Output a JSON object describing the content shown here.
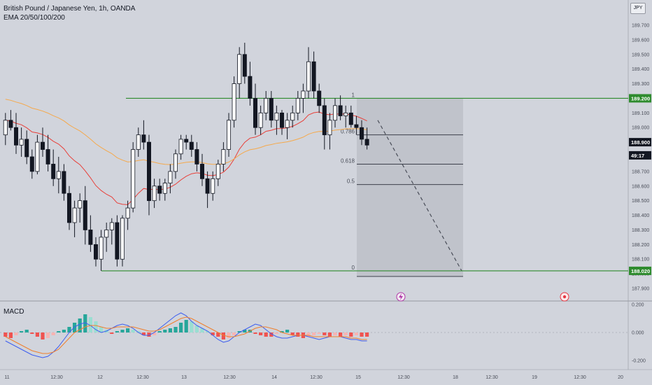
{
  "header": {
    "symbol": "British Pound / Japanese Yen, 1h, OANDA",
    "indicator": "EMA 20/50/100/200",
    "currency_button": "JPY"
  },
  "macd_panel": {
    "label": "MACD",
    "ticks": [
      "0.200",
      "0.000",
      "-0.200"
    ]
  },
  "price_axis": {
    "ticks": [
      "189.700",
      "189.600",
      "189.500",
      "189.400",
      "189.300",
      "189.200",
      "189.100",
      "189.000",
      "188.900",
      "188.800",
      "188.700",
      "188.600",
      "188.500",
      "188.400",
      "188.300",
      "188.200",
      "188.100",
      "188.000",
      "187.900"
    ]
  },
  "price_tags": {
    "resistance": "189.200",
    "support": "188.020",
    "countdown": "49:17",
    "last_price": "188.900"
  },
  "time_axis": [
    "11",
    "12:30",
    "12",
    "12:30",
    "13",
    "12:30",
    "14",
    "12:30",
    "15",
    "12:30",
    "18",
    "12:30",
    "19",
    "12:30",
    "20"
  ],
  "fib_labels": [
    "1",
    "0.786",
    "0.618",
    "0.5",
    "0"
  ],
  "colors": {
    "bg": "#d1d4dc",
    "up": "#ffffff",
    "down": "#131722",
    "ema_fast": "#e8403a",
    "ema_slow": "#f5a94c",
    "level": "#2e8b2e",
    "macd_line": "#3d5ef0",
    "signal_line": "#ef7f2d",
    "hist_up": "#26a69a",
    "hist_up_light": "#9bded2",
    "hist_down": "#ef5350",
    "hist_down_light": "#f7b4b2"
  },
  "icons": {
    "event_1": "lightning-icon",
    "event_2": "target-icon"
  },
  "chart_data": [
    {
      "type": "candlestick",
      "title": "British Pound / Japanese Yen, 1h, OANDA",
      "ylim": [
        187.88,
        189.76
      ],
      "levels": {
        "resistance": 189.2,
        "support": 188.02
      },
      "fibonacci": {
        "levels": [
          1,
          0.786,
          0.618,
          0.5,
          0
        ],
        "prices": [
          189.2,
          188.95,
          188.75,
          188.61,
          188.02
        ]
      },
      "projection": {
        "from": 189.05,
        "to": 188.02
      },
      "last_price": 188.9,
      "ohlc": [
        [
          188.95,
          189.1,
          188.88,
          189.05
        ],
        [
          189.05,
          189.12,
          188.98,
          189.0
        ],
        [
          189.0,
          189.1,
          188.82,
          188.88
        ],
        [
          188.88,
          189.0,
          188.8,
          188.92
        ],
        [
          188.92,
          188.98,
          188.75,
          188.8
        ],
        [
          188.8,
          188.85,
          188.65,
          188.7
        ],
        [
          188.7,
          188.95,
          188.68,
          188.9
        ],
        [
          188.9,
          189.0,
          188.8,
          188.85
        ],
        [
          188.85,
          188.95,
          188.7,
          188.75
        ],
        [
          188.75,
          188.85,
          188.6,
          188.65
        ],
        [
          188.65,
          188.8,
          188.55,
          188.7
        ],
        [
          188.7,
          188.75,
          188.5,
          188.55
        ],
        [
          188.55,
          188.6,
          188.3,
          188.35
        ],
        [
          188.35,
          188.5,
          188.25,
          188.45
        ],
        [
          188.45,
          188.55,
          188.35,
          188.5
        ],
        [
          188.5,
          188.6,
          188.2,
          188.3
        ],
        [
          188.3,
          188.4,
          188.15,
          188.2
        ],
        [
          188.2,
          188.25,
          188.05,
          188.1
        ],
        [
          188.1,
          188.3,
          188.02,
          188.25
        ],
        [
          188.25,
          188.35,
          188.15,
          188.3
        ],
        [
          188.3,
          188.38,
          188.2,
          188.35
        ],
        [
          188.35,
          188.4,
          188.05,
          188.1
        ],
        [
          188.1,
          188.4,
          188.05,
          188.38
        ],
        [
          188.38,
          188.5,
          188.3,
          188.45
        ],
        [
          188.45,
          188.9,
          188.42,
          188.85
        ],
        [
          188.85,
          189.0,
          188.8,
          188.95
        ],
        [
          188.95,
          189.05,
          188.85,
          188.9
        ],
        [
          188.9,
          188.95,
          188.4,
          188.5
        ],
        [
          188.5,
          188.65,
          188.45,
          188.6
        ],
        [
          188.6,
          188.65,
          188.5,
          188.55
        ],
        [
          188.55,
          188.65,
          188.5,
          188.62
        ],
        [
          188.62,
          188.75,
          188.55,
          188.7
        ],
        [
          188.7,
          188.85,
          188.65,
          188.82
        ],
        [
          188.82,
          188.95,
          188.78,
          188.92
        ],
        [
          188.92,
          188.95,
          188.85,
          188.9
        ],
        [
          188.9,
          188.95,
          188.8,
          188.85
        ],
        [
          188.85,
          188.9,
          188.7,
          188.75
        ],
        [
          188.75,
          188.82,
          188.6,
          188.65
        ],
        [
          188.65,
          188.7,
          188.45,
          188.55
        ],
        [
          188.55,
          188.7,
          188.5,
          188.65
        ],
        [
          188.65,
          188.78,
          188.6,
          188.75
        ],
        [
          188.75,
          188.9,
          188.7,
          188.85
        ],
        [
          188.85,
          189.1,
          188.8,
          189.05
        ],
        [
          189.05,
          189.35,
          189.0,
          189.3
        ],
        [
          189.3,
          189.55,
          189.2,
          189.5
        ],
        [
          189.5,
          189.58,
          189.3,
          189.35
        ],
        [
          189.35,
          189.45,
          189.15,
          189.2
        ],
        [
          189.2,
          189.3,
          188.95,
          189.0
        ],
        [
          189.0,
          189.15,
          188.95,
          189.1
        ],
        [
          189.1,
          189.25,
          189.05,
          189.2
        ],
        [
          189.2,
          189.25,
          189.0,
          189.05
        ],
        [
          189.05,
          189.15,
          188.95,
          189.1
        ],
        [
          189.1,
          189.12,
          188.95,
          189.0
        ],
        [
          189.0,
          189.1,
          188.92,
          189.05
        ],
        [
          189.05,
          189.15,
          189.0,
          189.1
        ],
        [
          189.1,
          189.25,
          189.05,
          189.2
        ],
        [
          189.2,
          189.3,
          189.1,
          189.25
        ],
        [
          189.25,
          189.55,
          189.2,
          189.45
        ],
        [
          189.45,
          189.52,
          189.2,
          189.25
        ],
        [
          189.25,
          189.3,
          189.1,
          189.15
        ],
        [
          189.15,
          189.2,
          188.85,
          188.95
        ],
        [
          188.95,
          189.1,
          188.85,
          189.05
        ],
        [
          189.05,
          189.2,
          189.0,
          189.15
        ],
        [
          189.15,
          189.22,
          189.05,
          189.08
        ],
        [
          189.08,
          189.15,
          189.0,
          189.1
        ],
        [
          189.1,
          189.15,
          189.0,
          189.02
        ],
        [
          189.02,
          189.08,
          188.95,
          189.0
        ],
        [
          189.0,
          189.05,
          188.88,
          188.92
        ],
        [
          188.92,
          189.0,
          188.85,
          188.88
        ]
      ]
    },
    {
      "type": "macd",
      "ylim": [
        -0.25,
        0.25
      ],
      "histogram": [
        -0.03,
        -0.04,
        -0.02,
        0.01,
        0.02,
        -0.01,
        -0.03,
        -0.05,
        -0.04,
        -0.02,
        0.01,
        0.02,
        0.04,
        0.07,
        0.1,
        0.13,
        0.11,
        0.08,
        0.04,
        0.02,
        -0.01,
        0.01,
        0.02,
        0.03,
        0.02,
        0.01,
        -0.02,
        -0.03,
        -0.02,
        0.01,
        0.02,
        0.03,
        0.04,
        0.07,
        0.09,
        0.08,
        0.05,
        0.03,
        0.01,
        -0.02,
        -0.03,
        -0.05,
        -0.04,
        -0.02,
        0.01,
        0.02,
        0.02,
        -0.01,
        -0.02,
        -0.03,
        -0.03,
        -0.01,
        0.01,
        0.02,
        -0.02,
        -0.03,
        -0.04,
        -0.03,
        -0.02,
        -0.01,
        -0.02,
        -0.03,
        -0.02,
        -0.03,
        -0.02,
        -0.03,
        -0.02,
        -0.03,
        -0.03
      ],
      "macd": [
        -0.06,
        -0.08,
        -0.1,
        -0.12,
        -0.14,
        -0.16,
        -0.17,
        -0.18,
        -0.17,
        -0.14,
        -0.1,
        -0.05,
        0.0,
        0.04,
        0.06,
        0.07,
        0.05,
        0.02,
        0.0,
        0.01,
        0.03,
        0.05,
        0.06,
        0.05,
        0.03,
        0.0,
        -0.02,
        -0.02,
        0.0,
        0.03,
        0.06,
        0.09,
        0.12,
        0.14,
        0.12,
        0.08,
        0.05,
        0.03,
        0.01,
        -0.02,
        -0.05,
        -0.07,
        -0.06,
        -0.03,
        0.0,
        0.02,
        0.04,
        0.06,
        0.05,
        0.02,
        -0.01,
        -0.03,
        -0.04,
        -0.04,
        -0.03,
        -0.02,
        -0.02,
        -0.03,
        -0.04,
        -0.05,
        -0.04,
        -0.03,
        -0.03,
        -0.03,
        -0.04,
        -0.05,
        -0.05,
        -0.06,
        -0.06
      ],
      "signal": [
        -0.03,
        -0.05,
        -0.07,
        -0.09,
        -0.11,
        -0.13,
        -0.14,
        -0.15,
        -0.15,
        -0.14,
        -0.12,
        -0.08,
        -0.04,
        0.0,
        0.02,
        0.04,
        0.05,
        0.05,
        0.04,
        0.03,
        0.03,
        0.04,
        0.04,
        0.04,
        0.04,
        0.03,
        0.02,
        0.01,
        0.01,
        0.02,
        0.04,
        0.06,
        0.08,
        0.1,
        0.11,
        0.1,
        0.08,
        0.06,
        0.04,
        0.02,
        0.0,
        -0.02,
        -0.03,
        -0.03,
        -0.02,
        -0.01,
        0.01,
        0.03,
        0.04,
        0.04,
        0.03,
        0.02,
        0.0,
        -0.01,
        -0.02,
        -0.02,
        -0.02,
        -0.02,
        -0.03,
        -0.03,
        -0.03,
        -0.03,
        -0.03,
        -0.03,
        -0.03,
        -0.04,
        -0.04,
        -0.05,
        -0.05
      ]
    }
  ]
}
